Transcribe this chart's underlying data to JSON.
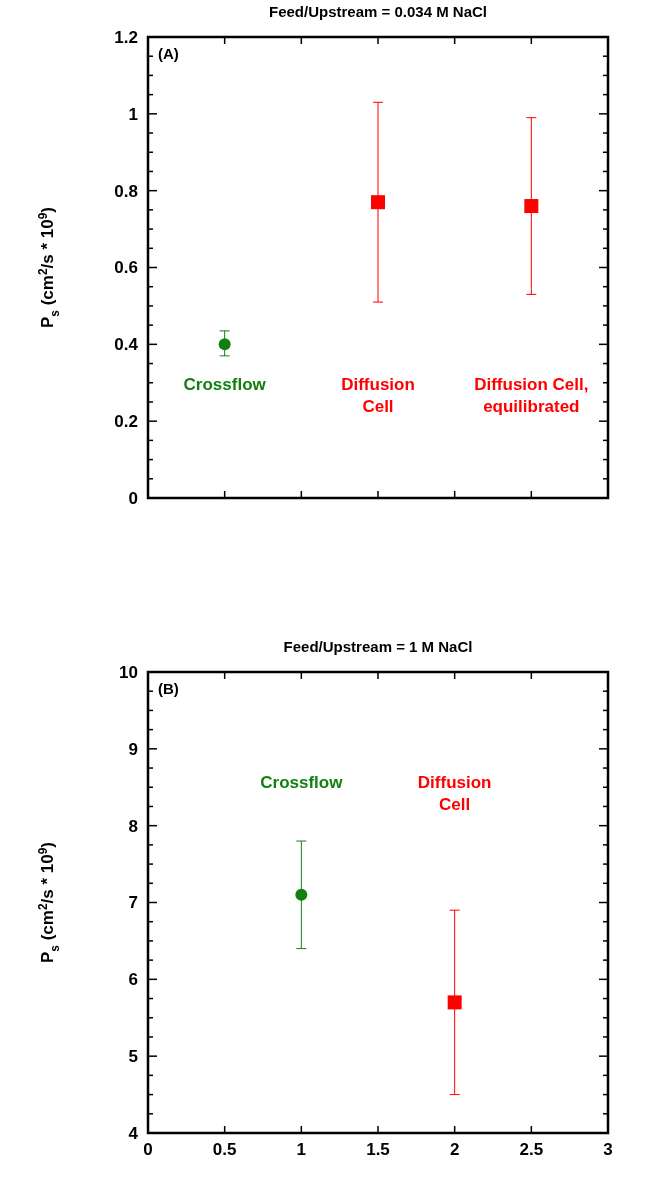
{
  "chart_data": [
    {
      "type": "scatter",
      "title": "Feed/Upstream = 0.034 M NaCl",
      "ylabel": "P$_{s}$ (cm$^{2}$/s * 10$^{9}$)",
      "xlim": [
        0,
        3
      ],
      "ylim": [
        0,
        1.2
      ],
      "tick_labels": "y",
      "xticks": [
        {
          "value": 0,
          "label": null
        },
        {
          "value": 0.5,
          "label": null
        },
        {
          "value": 1,
          "label": null
        },
        {
          "value": 1.5,
          "label": null
        },
        {
          "value": 2,
          "label": null
        },
        {
          "value": 2.5,
          "label": null
        },
        {
          "value": 3,
          "label": null
        }
      ],
      "yticks": [
        0,
        {
          "value": 0.05,
          "label": null
        },
        {
          "value": 0.1,
          "label": null
        },
        {
          "value": 0.15,
          "label": null
        },
        0.2,
        {
          "value": 0.25,
          "label": null
        },
        {
          "value": 0.3,
          "label": null
        },
        {
          "value": 0.35,
          "label": null
        },
        0.4,
        {
          "value": 0.45,
          "label": null
        },
        {
          "value": 0.5,
          "label": null
        },
        {
          "value": 0.55,
          "label": null
        },
        0.6,
        {
          "value": 0.65,
          "label": null
        },
        {
          "value": 0.7,
          "label": null
        },
        {
          "value": 0.75,
          "label": null
        },
        0.8,
        {
          "value": 0.85,
          "label": null
        },
        {
          "value": 0.9,
          "label": null
        },
        {
          "value": 0.95,
          "label": null
        },
        1,
        {
          "value": 1.05,
          "label": null
        },
        {
          "value": 1.1,
          "label": null
        },
        {
          "value": 1.15,
          "label": null
        },
        1.2
      ],
      "series": [
        {
          "color": "#118011",
          "marker": "circle",
          "x": [
            0.5
          ],
          "values": [
            0.4
          ],
          "errors": [
            [
              0.37,
              0.435
            ]
          ]
        },
        {
          "color": "#ff0000",
          "marker": "square",
          "x": [
            1.5
          ],
          "values": [
            0.77
          ],
          "errors": [
            [
              0.51,
              1.03
            ]
          ]
        },
        {
          "color": "#ff0000",
          "marker": "square",
          "x": [
            2.5
          ],
          "values": [
            0.76
          ],
          "errors": [
            [
              0.53,
              0.99
            ]
          ]
        }
      ],
      "annotations": [
        "(A)",
        "Crossflow",
        "Diffusion Cell",
        "Diffusion Cell, equilibrated"
      ]
    },
    {
      "type": "scatter",
      "title": "Feed/Upstream = 1 M NaCl",
      "ylabel": "P$_{s}$ (cm$^{2}$/s * 10$^{9}$)",
      "xlim": [
        0,
        3
      ],
      "ylim": [
        4,
        10
      ],
      "xticks": [
        0,
        0.5,
        1,
        1.5,
        2,
        2.5,
        3
      ],
      "yticks": [
        4,
        {
          "value": 4.25,
          "label": null
        },
        {
          "value": 4.5,
          "label": null
        },
        {
          "value": 4.75,
          "label": null
        },
        5,
        {
          "value": 5.25,
          "label": null
        },
        {
          "value": 5.5,
          "label": null
        },
        {
          "value": 5.75,
          "label": null
        },
        6,
        {
          "value": 6.25,
          "label": null
        },
        {
          "value": 6.5,
          "label": null
        },
        {
          "value": 6.75,
          "label": null
        },
        7,
        {
          "value": 7.25,
          "label": null
        },
        {
          "value": 7.5,
          "label": null
        },
        {
          "value": 7.75,
          "label": null
        },
        8,
        {
          "value": 8.25,
          "label": null
        },
        {
          "value": 8.5,
          "label": null
        },
        {
          "value": 8.75,
          "label": null
        },
        9,
        {
          "value": 9.25,
          "label": null
        },
        {
          "value": 9.5,
          "label": null
        },
        {
          "value": 9.75,
          "label": null
        },
        10
      ],
      "series": [
        {
          "color": "#118011",
          "marker": "circle",
          "x": [
            1
          ],
          "values": [
            7.1
          ],
          "errors": [
            [
              6.4,
              7.8
            ]
          ]
        },
        {
          "color": "#ff0000",
          "marker": "square",
          "x": [
            2
          ],
          "values": [
            5.7
          ],
          "errors": [
            [
              4.5,
              6.9
            ]
          ]
        }
      ],
      "annotations": [
        "(B)",
        "Crossflow",
        "Diffusion Cell"
      ]
    }
  ]
}
